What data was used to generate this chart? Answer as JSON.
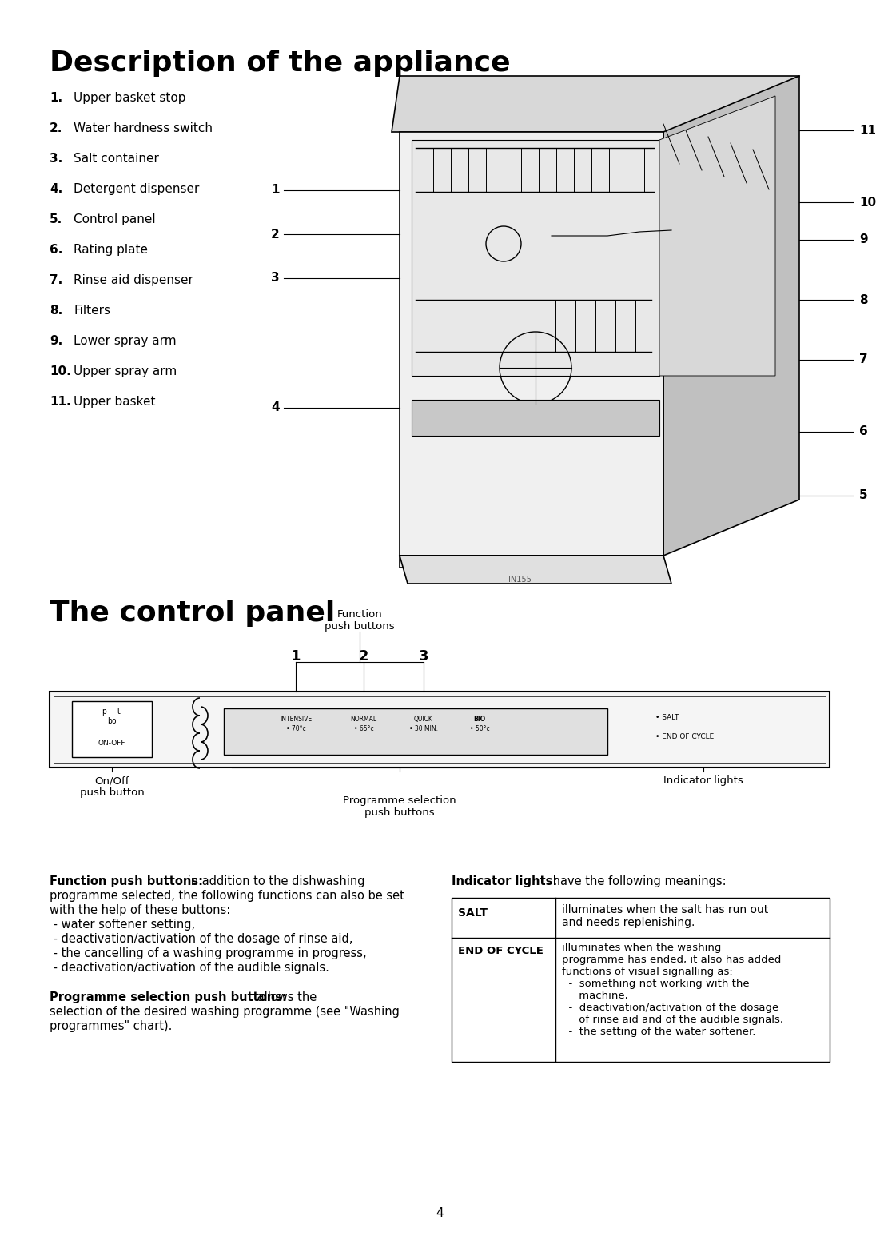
{
  "title1": "Description of the appliance",
  "title2": "The control panel",
  "bg_color": "#ffffff",
  "text_color": "#000000",
  "items": [
    [
      "1.",
      "Upper basket stop"
    ],
    [
      "2.",
      "Water hardness switch"
    ],
    [
      "3.",
      "Salt container"
    ],
    [
      "4.",
      "Detergent dispenser"
    ],
    [
      "5.",
      "Control panel"
    ],
    [
      "6.",
      "Rating plate"
    ],
    [
      "7.",
      "Rinse aid dispenser"
    ],
    [
      "8.",
      "Filters"
    ],
    [
      "9.",
      "Lower spray arm"
    ],
    [
      "10.",
      "Upper spray arm"
    ],
    [
      "11.",
      "Upper basket"
    ]
  ],
  "diagram_label": "IN155",
  "func_text_bold": "Function push buttons:",
  "func_text_normal": " in addition to the dishwashing\nprogramme selected, the following functions can also be set\nwith the help of these buttons:\n - water softener setting,\n - deactivation/activation of the dosage of rinse aid,\n - the cancelling of a washing programme in progress,\n - deactivation/activation of the audible signals.",
  "prog_text_bold": "Programme selection push buttons:",
  "prog_text_normal": " allows the\nselection of the desired washing programme (see \"Washing\nprogrammes\" chart).",
  "indic_text_bold": "Indicator lights:",
  "indic_text_normal": " have the following meanings:",
  "salt_label": "SALT",
  "salt_desc": "illuminates when the salt has run out\nand needs replenishing.",
  "eoc_label": "END OF CYCLE",
  "eoc_desc": "illuminates when the washing\nprogramme has ended, it also has added\nfunctions of visual signalling as:\n  -  something not working with the\n     machine,\n  -  deactivation/activation of the dosage\n     of rinse aid and of the audible signals,\n  -  the setting of the water softener.",
  "page_number": "4",
  "prog_labels": [
    "INTENSIVE",
    "NORMAL",
    "QUICK",
    "BIO"
  ],
  "prog_temps": [
    "• 70°c",
    "• 65°c",
    "• 30 MIN.",
    "• 50°c"
  ],
  "right_nums": [
    [
      "11",
      1065,
      153
    ],
    [
      "10",
      1065,
      243
    ],
    [
      "9",
      1065,
      290
    ],
    [
      "8",
      1065,
      365
    ],
    [
      "7",
      1065,
      440
    ],
    [
      "6",
      1065,
      530
    ],
    [
      "5",
      1065,
      610
    ]
  ],
  "left_nums": [
    [
      "1",
      340,
      228
    ],
    [
      "2",
      340,
      283
    ],
    [
      "3",
      340,
      338
    ],
    [
      "4",
      340,
      500
    ]
  ]
}
